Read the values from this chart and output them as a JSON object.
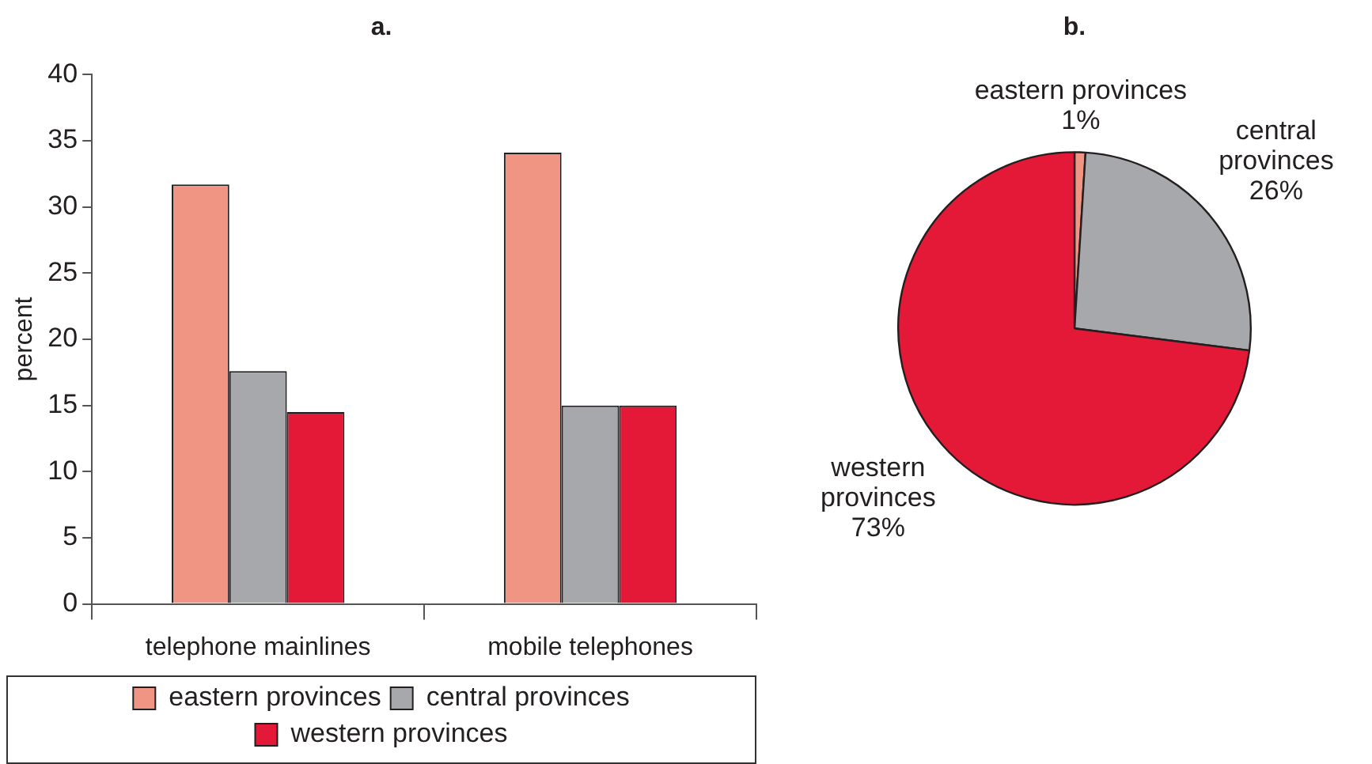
{
  "chart_data": [
    {
      "type": "bar",
      "title": "a.",
      "ylabel": "percent",
      "categories": [
        "telephone mainlines",
        "mobile telephones"
      ],
      "series": [
        {
          "name": "eastern provinces",
          "color": "#f09484",
          "values": [
            31.7,
            34.1
          ]
        },
        {
          "name": "central provinces",
          "color": "#a7a8ab",
          "values": [
            17.6,
            15.0
          ]
        },
        {
          "name": "western provinces",
          "color": "#e31937",
          "values": [
            14.5,
            15.0
          ]
        }
      ],
      "ylim": [
        0,
        40
      ],
      "yticks": [
        0,
        5,
        10,
        15,
        20,
        25,
        30,
        35,
        40
      ],
      "grid": false,
      "legend": "bottom"
    },
    {
      "type": "pie",
      "title": "b.",
      "categories": [
        "eastern provinces",
        "central provinces",
        "western provinces"
      ],
      "values": [
        1,
        26,
        73
      ],
      "colors": [
        "#f09484",
        "#a7a8ab",
        "#e31937"
      ],
      "value_labels": [
        "1%",
        "26%",
        "73%"
      ]
    }
  ]
}
